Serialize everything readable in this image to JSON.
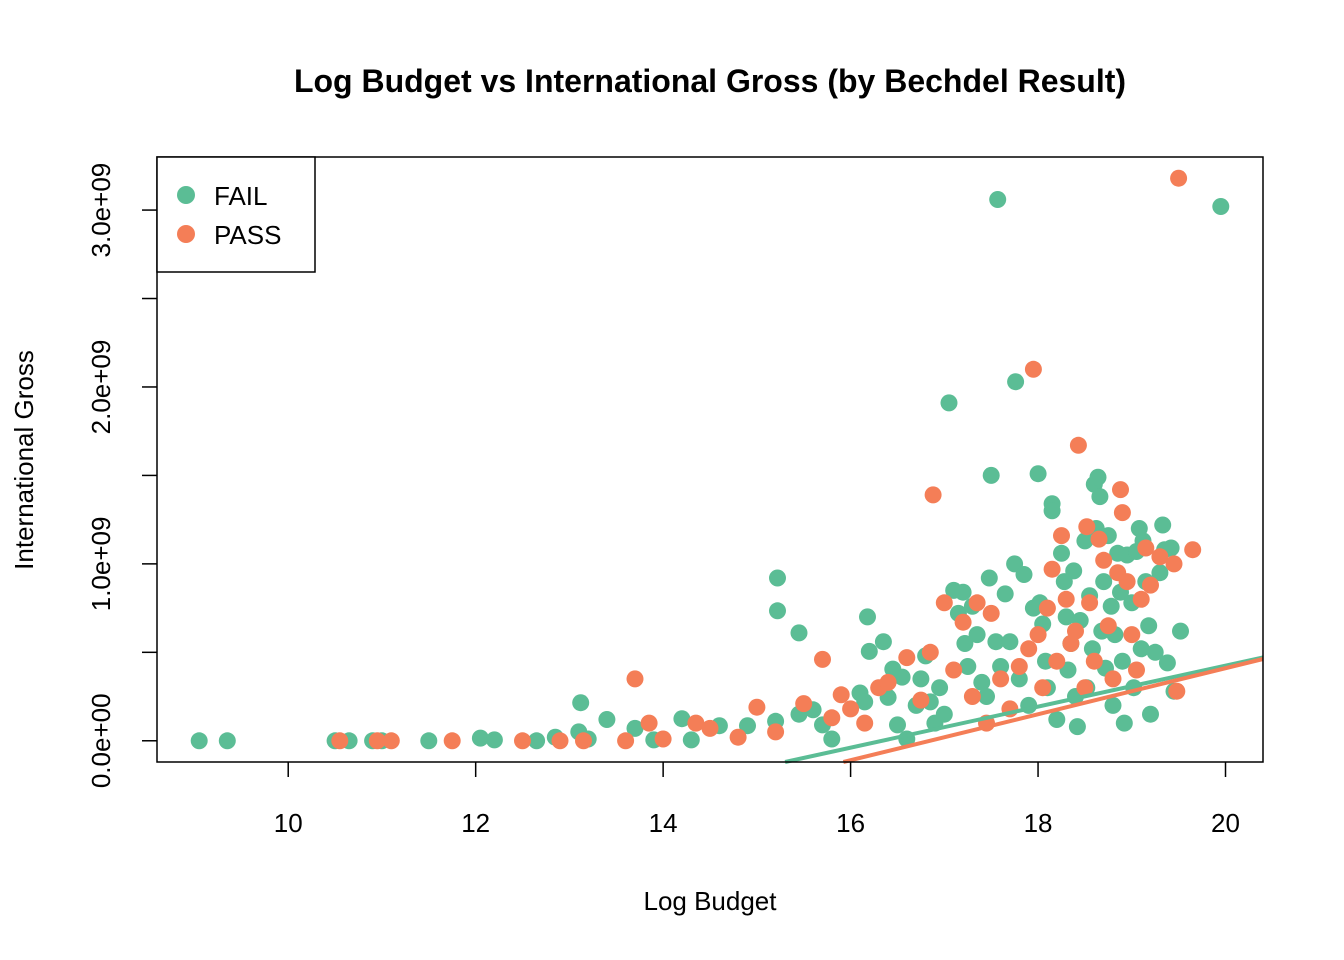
{
  "chart_data": {
    "type": "scatter",
    "title": "Log Budget vs International Gross (by Bechdel Result)",
    "xlabel": "Log Budget",
    "ylabel": "International Gross",
    "xlim": [
      8.6,
      20.4
    ],
    "ylim": [
      -120000000,
      3300000000
    ],
    "x_ticks": [
      10,
      12,
      14,
      16,
      18,
      20
    ],
    "x_tick_labels": [
      "10",
      "12",
      "14",
      "16",
      "18",
      "20"
    ],
    "y_ticks": [
      0,
      500000000,
      1000000000,
      1500000000,
      2000000000,
      2500000000,
      3000000000
    ],
    "y_tick_labels": [
      "0.0e+00",
      "",
      "1.0e+09",
      "",
      "2.0e+09",
      "",
      "3.0e+09"
    ],
    "grid": false,
    "legend_position": "top-left",
    "series": [
      {
        "name": "FAIL",
        "color": "#5BBD95",
        "fit_line": {
          "intercept": -1895000000,
          "slope": 116000000
        },
        "points": [
          [
            9.05,
            0
          ],
          [
            9.35,
            0
          ],
          [
            10.5,
            0
          ],
          [
            10.65,
            0
          ],
          [
            10.9,
            0
          ],
          [
            11.0,
            0
          ],
          [
            11.5,
            0
          ],
          [
            12.05,
            15000000
          ],
          [
            12.2,
            5000000
          ],
          [
            12.65,
            0
          ],
          [
            12.85,
            20000000
          ],
          [
            13.1,
            50000000
          ],
          [
            13.12,
            215000000
          ],
          [
            13.2,
            10000000
          ],
          [
            13.4,
            120000000
          ],
          [
            13.7,
            70000000
          ],
          [
            13.9,
            5000000
          ],
          [
            14.2,
            125000000
          ],
          [
            14.3,
            5000000
          ],
          [
            14.6,
            85000000
          ],
          [
            14.9,
            85000000
          ],
          [
            15.2,
            110000000
          ],
          [
            15.22,
            920000000
          ],
          [
            15.22,
            735000000
          ],
          [
            15.45,
            610000000
          ],
          [
            15.45,
            150000000
          ],
          [
            15.6,
            175000000
          ],
          [
            15.7,
            90000000
          ],
          [
            15.8,
            10000000
          ],
          [
            16.1,
            270000000
          ],
          [
            16.15,
            220000000
          ],
          [
            16.18,
            700000000
          ],
          [
            16.2,
            505000000
          ],
          [
            16.35,
            560000000
          ],
          [
            16.4,
            245000000
          ],
          [
            16.45,
            405000000
          ],
          [
            16.5,
            90000000
          ],
          [
            16.55,
            360000000
          ],
          [
            16.6,
            10000000
          ],
          [
            16.7,
            200000000
          ],
          [
            16.75,
            350000000
          ],
          [
            16.8,
            480000000
          ],
          [
            16.85,
            220000000
          ],
          [
            16.9,
            100000000
          ],
          [
            16.95,
            300000000
          ],
          [
            17.0,
            150000000
          ],
          [
            17.05,
            1910000000
          ],
          [
            17.1,
            850000000
          ],
          [
            17.15,
            720000000
          ],
          [
            17.2,
            840000000
          ],
          [
            17.22,
            550000000
          ],
          [
            17.25,
            420000000
          ],
          [
            17.3,
            760000000
          ],
          [
            17.35,
            600000000
          ],
          [
            17.4,
            330000000
          ],
          [
            17.45,
            250000000
          ],
          [
            17.5,
            1500000000
          ],
          [
            17.48,
            920000000
          ],
          [
            17.55,
            560000000
          ],
          [
            17.57,
            3060000000
          ],
          [
            17.6,
            420000000
          ],
          [
            17.65,
            830000000
          ],
          [
            17.7,
            560000000
          ],
          [
            17.75,
            1000000000
          ],
          [
            17.76,
            2030000000
          ],
          [
            17.8,
            350000000
          ],
          [
            17.85,
            940000000
          ],
          [
            17.9,
            200000000
          ],
          [
            17.95,
            750000000
          ],
          [
            18.0,
            1510000000
          ],
          [
            18.02,
            780000000
          ],
          [
            18.05,
            660000000
          ],
          [
            18.08,
            450000000
          ],
          [
            18.1,
            300000000
          ],
          [
            18.15,
            1340000000
          ],
          [
            18.15,
            1300000000
          ],
          [
            18.2,
            120000000
          ],
          [
            18.25,
            1060000000
          ],
          [
            18.28,
            900000000
          ],
          [
            18.3,
            700000000
          ],
          [
            18.32,
            400000000
          ],
          [
            18.35,
            550000000
          ],
          [
            18.38,
            960000000
          ],
          [
            18.4,
            250000000
          ],
          [
            18.42,
            80000000
          ],
          [
            18.45,
            680000000
          ],
          [
            18.5,
            1130000000
          ],
          [
            18.52,
            300000000
          ],
          [
            18.55,
            820000000
          ],
          [
            18.58,
            520000000
          ],
          [
            18.6,
            1450000000
          ],
          [
            18.62,
            1200000000
          ],
          [
            18.64,
            1490000000
          ],
          [
            18.66,
            1380000000
          ],
          [
            18.68,
            620000000
          ],
          [
            18.7,
            900000000
          ],
          [
            18.72,
            410000000
          ],
          [
            18.75,
            1160000000
          ],
          [
            18.78,
            760000000
          ],
          [
            18.8,
            200000000
          ],
          [
            18.82,
            600000000
          ],
          [
            18.85,
            1060000000
          ],
          [
            18.88,
            840000000
          ],
          [
            18.9,
            450000000
          ],
          [
            18.92,
            100000000
          ],
          [
            18.95,
            1050000000
          ],
          [
            19.0,
            780000000
          ],
          [
            19.02,
            300000000
          ],
          [
            19.05,
            1070000000
          ],
          [
            19.08,
            1200000000
          ],
          [
            19.1,
            520000000
          ],
          [
            19.12,
            1130000000
          ],
          [
            19.15,
            900000000
          ],
          [
            19.18,
            650000000
          ],
          [
            19.2,
            150000000
          ],
          [
            19.25,
            500000000
          ],
          [
            19.3,
            950000000
          ],
          [
            19.33,
            1220000000
          ],
          [
            19.35,
            1080000000
          ],
          [
            19.38,
            440000000
          ],
          [
            19.42,
            1090000000
          ],
          [
            19.45,
            280000000
          ],
          [
            19.52,
            620000000
          ],
          [
            19.95,
            3020000000
          ]
        ]
      },
      {
        "name": "PASS",
        "color": "#F47E57",
        "fit_line": {
          "intercept": -2190000000,
          "slope": 130000000
        },
        "points": [
          [
            10.55,
            0
          ],
          [
            10.95,
            0
          ],
          [
            11.1,
            0
          ],
          [
            11.75,
            0
          ],
          [
            12.5,
            0
          ],
          [
            12.9,
            0
          ],
          [
            13.15,
            0
          ],
          [
            13.6,
            0
          ],
          [
            13.7,
            350000000
          ],
          [
            13.85,
            100000000
          ],
          [
            14.0,
            10000000
          ],
          [
            14.35,
            100000000
          ],
          [
            14.5,
            70000000
          ],
          [
            14.8,
            20000000
          ],
          [
            15.0,
            190000000
          ],
          [
            15.2,
            50000000
          ],
          [
            15.5,
            210000000
          ],
          [
            15.7,
            460000000
          ],
          [
            15.8,
            130000000
          ],
          [
            15.9,
            260000000
          ],
          [
            16.0,
            180000000
          ],
          [
            16.15,
            100000000
          ],
          [
            16.3,
            300000000
          ],
          [
            16.4,
            330000000
          ],
          [
            16.6,
            470000000
          ],
          [
            16.75,
            230000000
          ],
          [
            16.85,
            500000000
          ],
          [
            16.88,
            1390000000
          ],
          [
            17.0,
            780000000
          ],
          [
            17.1,
            400000000
          ],
          [
            17.2,
            670000000
          ],
          [
            17.3,
            250000000
          ],
          [
            17.35,
            780000000
          ],
          [
            17.45,
            100000000
          ],
          [
            17.5,
            720000000
          ],
          [
            17.6,
            350000000
          ],
          [
            17.7,
            180000000
          ],
          [
            17.8,
            420000000
          ],
          [
            17.9,
            520000000
          ],
          [
            17.95,
            2100000000
          ],
          [
            18.0,
            600000000
          ],
          [
            18.05,
            300000000
          ],
          [
            18.1,
            750000000
          ],
          [
            18.15,
            970000000
          ],
          [
            18.2,
            450000000
          ],
          [
            18.25,
            1160000000
          ],
          [
            18.3,
            800000000
          ],
          [
            18.35,
            550000000
          ],
          [
            18.4,
            620000000
          ],
          [
            18.43,
            1670000000
          ],
          [
            18.5,
            300000000
          ],
          [
            18.52,
            1210000000
          ],
          [
            18.55,
            780000000
          ],
          [
            18.6,
            450000000
          ],
          [
            18.65,
            1140000000
          ],
          [
            18.7,
            1020000000
          ],
          [
            18.75,
            650000000
          ],
          [
            18.8,
            350000000
          ],
          [
            18.85,
            950000000
          ],
          [
            18.88,
            1420000000
          ],
          [
            18.9,
            1290000000
          ],
          [
            18.95,
            900000000
          ],
          [
            19.0,
            600000000
          ],
          [
            19.05,
            400000000
          ],
          [
            19.1,
            800000000
          ],
          [
            19.15,
            1090000000
          ],
          [
            19.2,
            880000000
          ],
          [
            19.3,
            1040000000
          ],
          [
            19.45,
            1000000000
          ],
          [
            19.48,
            280000000
          ],
          [
            19.5,
            3180000000
          ],
          [
            19.65,
            1080000000
          ]
        ]
      }
    ]
  }
}
